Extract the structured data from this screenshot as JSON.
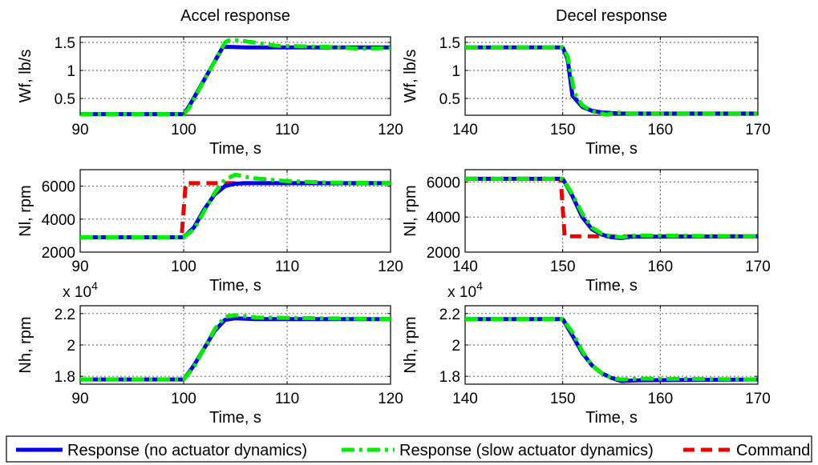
{
  "chart_data": [
    {
      "id": "p11",
      "type": "line",
      "title": "Accel response",
      "xlabel": "Time, s",
      "ylabel": "Wf, lb/s",
      "xlim": [
        90,
        120
      ],
      "ylim": [
        0.2,
        1.6
      ],
      "xticks": [
        90,
        100,
        110,
        120
      ],
      "xticklabels": [
        "90",
        "100",
        "110",
        "120"
      ],
      "yticks": [
        0.5,
        1,
        1.5
      ],
      "yticklabels": [
        "0.5",
        "1",
        "1.5"
      ],
      "exponent": "",
      "grid": true,
      "series": [
        {
          "key": "no_act",
          "x": [
            90,
            100,
            100.5,
            103.8,
            104.5,
            106,
            120
          ],
          "y": [
            0.22,
            0.22,
            0.35,
            1.42,
            1.42,
            1.41,
            1.41
          ]
        },
        {
          "key": "slow_act",
          "x": [
            90,
            100,
            100.5,
            104,
            104.5,
            106,
            109,
            114,
            117,
            120
          ],
          "y": [
            0.22,
            0.22,
            0.32,
            1.5,
            1.55,
            1.52,
            1.44,
            1.42,
            1.39,
            1.4
          ]
        }
      ]
    },
    {
      "id": "p12",
      "type": "line",
      "title": "Decel response",
      "xlabel": "Time, s",
      "ylabel": "Wf, lb/s",
      "xlim": [
        140,
        170
      ],
      "ylim": [
        0.2,
        1.6
      ],
      "xticks": [
        140,
        150,
        160,
        170
      ],
      "xticklabels": [
        "140",
        "150",
        "160",
        "170"
      ],
      "yticks": [
        0.5,
        1,
        1.5
      ],
      "yticklabels": [
        "0.5",
        "1",
        "1.5"
      ],
      "exponent": "",
      "grid": true,
      "series": [
        {
          "key": "no_act",
          "x": [
            140,
            150,
            150.5,
            151,
            152,
            153,
            154,
            155,
            156,
            158,
            170
          ],
          "y": [
            1.41,
            1.41,
            1.2,
            0.55,
            0.35,
            0.28,
            0.25,
            0.24,
            0.23,
            0.23,
            0.23
          ]
        },
        {
          "key": "slow_act",
          "x": [
            140,
            150,
            150.5,
            151.2,
            152,
            153,
            154.5,
            155.5,
            157,
            170
          ],
          "y": [
            1.41,
            1.41,
            1.25,
            0.6,
            0.38,
            0.27,
            0.21,
            0.25,
            0.23,
            0.23
          ]
        }
      ]
    },
    {
      "id": "p21",
      "type": "line",
      "title": "",
      "xlabel": "Time, s",
      "ylabel": "Nl, rpm",
      "xlim": [
        90,
        120
      ],
      "ylim": [
        2000,
        7000
      ],
      "xticks": [
        90,
        100,
        110,
        120
      ],
      "xticklabels": [
        "90",
        "100",
        "110",
        "120"
      ],
      "yticks": [
        2000,
        4000,
        6000
      ],
      "yticklabels": [
        "2000",
        "4000",
        "6000"
      ],
      "exponent": "",
      "grid": true,
      "series": [
        {
          "key": "no_act",
          "x": [
            90,
            100,
            101,
            102,
            103,
            104,
            105,
            106,
            120
          ],
          "y": [
            2900,
            2900,
            3500,
            4600,
            5500,
            6000,
            6150,
            6180,
            6180
          ]
        },
        {
          "key": "slow_act",
          "x": [
            90,
            100,
            101,
            102,
            103,
            104,
            105,
            106.5,
            110,
            114,
            120
          ],
          "y": [
            2900,
            2900,
            3400,
            4500,
            5600,
            6400,
            6700,
            6500,
            6300,
            6220,
            6180
          ]
        },
        {
          "key": "command",
          "x": [
            90,
            99.8,
            100.2,
            120
          ],
          "y": [
            2900,
            2900,
            6180,
            6180
          ]
        }
      ]
    },
    {
      "id": "p22",
      "type": "line",
      "title": "",
      "xlabel": "Time, s",
      "ylabel": "Nl, rpm",
      "xlim": [
        140,
        170
      ],
      "ylim": [
        2000,
        6700
      ],
      "xticks": [
        140,
        150,
        160,
        170
      ],
      "xticklabels": [
        "140",
        "150",
        "160",
        "170"
      ],
      "yticks": [
        2000,
        4000,
        6000
      ],
      "yticklabels": [
        "2000",
        "4000",
        "6000"
      ],
      "exponent": "",
      "grid": true,
      "series": [
        {
          "key": "no_act",
          "x": [
            140,
            150,
            151,
            152,
            153,
            154,
            155,
            156,
            157,
            170
          ],
          "y": [
            6180,
            6180,
            5200,
            4000,
            3300,
            3000,
            2850,
            2800,
            2880,
            2900
          ]
        },
        {
          "key": "slow_act",
          "x": [
            140,
            150,
            151,
            152,
            153,
            154,
            155,
            156,
            157.5,
            170
          ],
          "y": [
            6180,
            6180,
            5300,
            4200,
            3400,
            3050,
            2900,
            2850,
            2950,
            2900
          ]
        },
        {
          "key": "command",
          "x": [
            140,
            149.8,
            150.2,
            170
          ],
          "y": [
            6180,
            6180,
            2900,
            2900
          ]
        }
      ]
    },
    {
      "id": "p31",
      "type": "line",
      "title": "",
      "xlabel": "Time, s",
      "ylabel": "Nh, rpm",
      "xlim": [
        90,
        120
      ],
      "ylim": [
        1.75,
        2.25
      ],
      "xticks": [
        90,
        100,
        110,
        120
      ],
      "xticklabels": [
        "90",
        "100",
        "110",
        "120"
      ],
      "yticks": [
        1.8,
        2,
        2.2
      ],
      "yticklabels": [
        "1.8",
        "2",
        "2.2"
      ],
      "exponent": "x 10",
      "exponent_power": "4",
      "grid": true,
      "series": [
        {
          "key": "no_act",
          "x": [
            90,
            100,
            101,
            102,
            103,
            104,
            105,
            107,
            120
          ],
          "y": [
            1.78,
            1.78,
            1.87,
            1.98,
            2.09,
            2.16,
            2.17,
            2.165,
            2.165
          ]
        },
        {
          "key": "slow_act",
          "x": [
            90,
            100,
            101,
            102,
            103,
            104,
            105,
            107,
            120
          ],
          "y": [
            1.78,
            1.78,
            1.86,
            1.98,
            2.1,
            2.18,
            2.19,
            2.175,
            2.165
          ]
        }
      ]
    },
    {
      "id": "p32",
      "type": "line",
      "title": "",
      "xlabel": "Time, s",
      "ylabel": "Nh, rpm",
      "xlim": [
        140,
        170
      ],
      "ylim": [
        1.75,
        2.25
      ],
      "xticks": [
        140,
        150,
        160,
        170
      ],
      "xticklabels": [
        "140",
        "150",
        "160",
        "170"
      ],
      "yticks": [
        1.8,
        2,
        2.2
      ],
      "yticklabels": [
        "1.8",
        "2",
        "2.2"
      ],
      "exponent": "x 10",
      "exponent_power": "4",
      "grid": true,
      "series": [
        {
          "key": "no_act",
          "x": [
            140,
            150,
            151,
            152,
            153,
            154,
            155,
            156,
            158,
            170
          ],
          "y": [
            2.165,
            2.165,
            2.06,
            1.95,
            1.87,
            1.82,
            1.79,
            1.77,
            1.775,
            1.78
          ]
        },
        {
          "key": "slow_act",
          "x": [
            140,
            150,
            151,
            152,
            153,
            154,
            155,
            156,
            158,
            170
          ],
          "y": [
            2.165,
            2.165,
            2.08,
            1.96,
            1.87,
            1.82,
            1.79,
            1.78,
            1.785,
            1.78
          ]
        }
      ]
    }
  ],
  "legend": {
    "placement": "bottom",
    "entries": [
      {
        "key": "no_act",
        "label": "Response (no actuator dynamics)",
        "color": "#0000ee",
        "dash": "solid"
      },
      {
        "key": "slow_act",
        "label": "Response (slow actuator dynamics)",
        "color": "#00ee00",
        "dash": "dash-dot"
      },
      {
        "key": "command",
        "label": "Command",
        "color": "#ee0000",
        "dash": "dashed"
      }
    ]
  }
}
